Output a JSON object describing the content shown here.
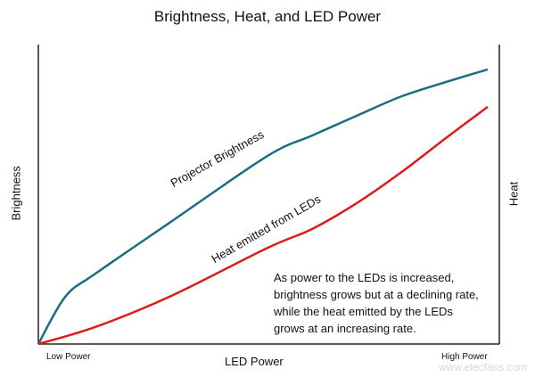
{
  "chart_data": {
    "type": "line",
    "title": "Brightness, Heat, and LED Power",
    "xlabel": "LED Power",
    "ylabel_left": "Brightness",
    "ylabel_right": "Heat",
    "x_tick_labels": [
      "Low Power",
      "High Power"
    ],
    "xlim": [
      0,
      100
    ],
    "ylim": [
      0,
      100
    ],
    "grid": false,
    "series": [
      {
        "name": "Projector Brightness",
        "color": "#1b6e80",
        "x": [
          0,
          6,
          12.7,
          29.2,
          51,
          60.9,
          70.8,
          80.8,
          90.7,
          100
        ],
        "y": [
          0,
          15.8,
          23.5,
          40.5,
          62.8,
          69.6,
          76.2,
          82.7,
          87.5,
          91.7
        ]
      },
      {
        "name": "Heat emitted from LEDs",
        "color": "#dd1b1b",
        "x": [
          0,
          12.7,
          29.2,
          51,
          60.9,
          70.8,
          80.8,
          90.7,
          100
        ],
        "y": [
          0,
          5.7,
          15.8,
          32.1,
          38.4,
          47,
          57.4,
          68.8,
          79.2
        ]
      }
    ],
    "annotation": "As power to the LEDs is increased, brightness grows but at a declining rate, while the heat emitted by the LEDs grows at an increasing rate."
  },
  "annotation_lines": [
    "As power to the LEDs is increased,",
    "brightness grows but at a declining rate,",
    "while the heat emitted by the LEDs",
    "grows at an increasing rate."
  ],
  "watermark": "www.elecfans.com"
}
